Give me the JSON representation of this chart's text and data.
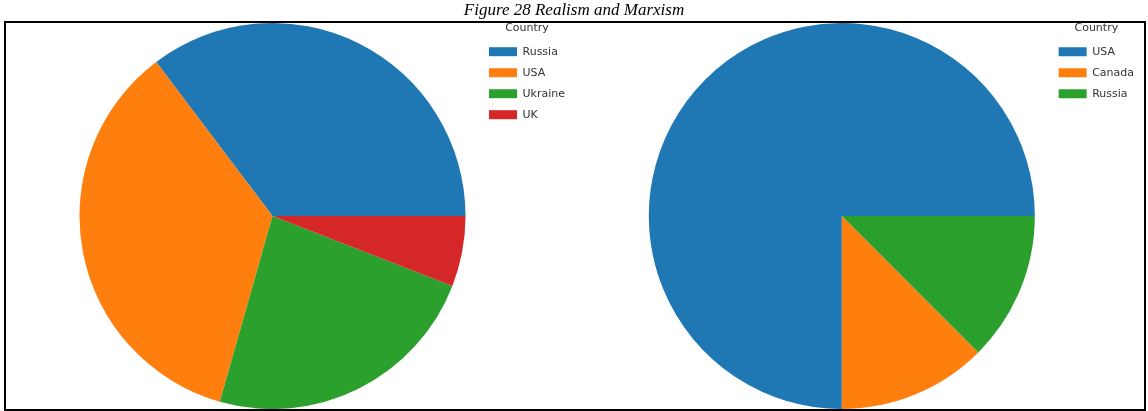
{
  "chart_data": [
    {
      "type": "pie",
      "title": "Figure 28 Realism and Marxism",
      "legend_title": "Country",
      "legend": "top right",
      "categories": [
        "Russia",
        "USA",
        "Ukraine",
        "UK"
      ],
      "values": [
        35.3,
        35.3,
        23.5,
        5.9
      ],
      "colors": [
        "#1f77b4",
        "#ff7f0e",
        "#2ca02c",
        "#d62728"
      ]
    },
    {
      "type": "pie",
      "legend_title": "Country",
      "legend": "top right",
      "categories": [
        "USA",
        "Canada",
        "Russia"
      ],
      "values": [
        75,
        12.5,
        12.5
      ],
      "colors": [
        "#1f77b4",
        "#ff7f0e",
        "#2ca02c"
      ]
    }
  ]
}
